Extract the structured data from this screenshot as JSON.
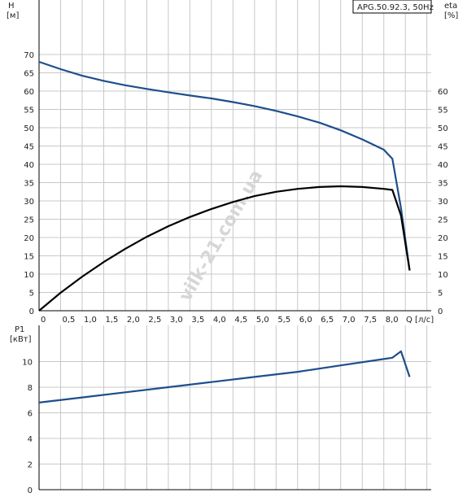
{
  "title": "APG.50.92.3, 50Hz",
  "watermark": "vilk-21.com.ua",
  "colors": {
    "head": "#1f4e8c",
    "eta": "#000000",
    "power": "#1f4e8c",
    "grid": "#c8c8c8"
  },
  "chart_data": [
    {
      "type": "line",
      "name": "head-efficiency",
      "xlabel": "Q [л/с]",
      "ylabel_left": "H\n[м]",
      "ylabel_right": "eta\n[%]",
      "x_ticks": [
        "0",
        "0,5",
        "1,0",
        "1,5",
        "2,0",
        "2,5",
        "3,0",
        "3,5",
        "4,0",
        "4,5",
        "5,0",
        "5,5",
        "6,0",
        "6,5",
        "7,0",
        "7,5",
        "8,0"
      ],
      "y_left_ticks": [
        "0",
        "5",
        "10",
        "15",
        "20",
        "25",
        "30",
        "35",
        "40",
        "45",
        "50",
        "55",
        "60",
        "65",
        "70"
      ],
      "y_right_ticks": [
        "0",
        "5",
        "10",
        "15",
        "20",
        "25",
        "30",
        "35",
        "40",
        "45",
        "50",
        "55",
        "60"
      ],
      "xlim": [
        0,
        9.1
      ],
      "ylim": [
        0,
        70
      ],
      "grid": true,
      "series": [
        {
          "key": "head",
          "x": [
            0,
            0.5,
            1.0,
            1.5,
            2.0,
            2.5,
            3.0,
            3.5,
            4.0,
            4.5,
            5.0,
            5.5,
            6.0,
            6.5,
            7.0,
            7.5,
            8.0,
            8.2,
            8.4,
            8.6
          ],
          "y": [
            68,
            66,
            64.2,
            62.8,
            61.6,
            60.6,
            59.7,
            58.8,
            58,
            57,
            55.9,
            54.6,
            53.1,
            51.4,
            49.3,
            46.8,
            44,
            41.5,
            28,
            11
          ]
        },
        {
          "key": "eta",
          "x": [
            0,
            0.5,
            1.0,
            1.5,
            2.0,
            2.5,
            3.0,
            3.5,
            4.0,
            4.5,
            5.0,
            5.5,
            6.0,
            6.5,
            7.0,
            7.5,
            8.0,
            8.2,
            8.4,
            8.6
          ],
          "y": [
            0,
            4.9,
            9.3,
            13.3,
            16.9,
            20.2,
            23.1,
            25.6,
            27.8,
            29.7,
            31.3,
            32.5,
            33.3,
            33.8,
            34,
            33.8,
            33.3,
            33,
            26,
            11
          ]
        }
      ]
    },
    {
      "type": "line",
      "name": "power",
      "ylabel": "P1\n[кВт]",
      "y_ticks": [
        "0",
        "2",
        "4",
        "6",
        "8",
        "10"
      ],
      "xlim": [
        0,
        9.1
      ],
      "ylim": [
        0,
        12
      ],
      "grid": true,
      "series": [
        {
          "key": "power",
          "x": [
            0,
            1,
            2,
            3,
            4,
            5,
            6,
            7,
            8,
            8.2,
            8.4,
            8.6
          ],
          "y": [
            6.8,
            7.2,
            7.6,
            8.0,
            8.4,
            8.8,
            9.2,
            9.7,
            10.2,
            10.3,
            10.8,
            8.8
          ]
        }
      ]
    }
  ]
}
